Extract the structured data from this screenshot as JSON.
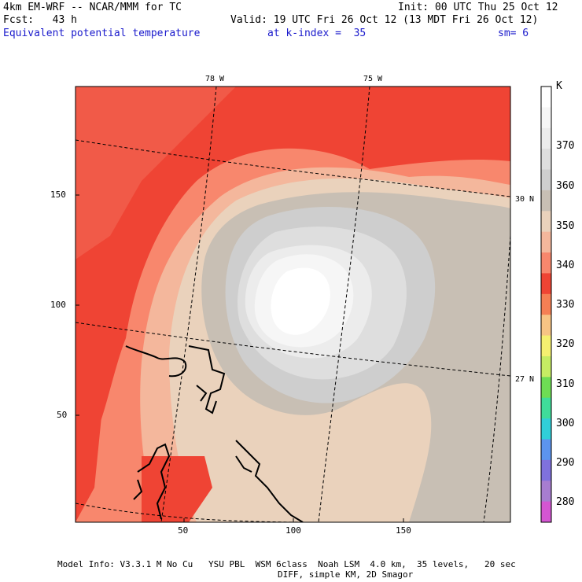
{
  "header": {
    "model": "4km EM-WRF -- NCAR/MMM for TC",
    "init": "Init: 00 UTC Thu 25 Oct 12",
    "fcst": "Fcst:   43 h",
    "valid": "Valid: 19 UTC Fri 26 Oct 12 (13 MDT Fri 26 Oct 12)",
    "field": "Equivalent potential temperature",
    "level": "at k-index =  35",
    "smooth": "sm= 6"
  },
  "map": {
    "lon_labels": [
      "78 W",
      "75 W"
    ],
    "lat_labels": [
      "30 N",
      "27 N"
    ],
    "y_ticks": [
      "150",
      "100",
      "50"
    ],
    "x_ticks": [
      "50",
      "100",
      "150"
    ]
  },
  "legend": {
    "unit": "K",
    "labels": [
      "370",
      "360",
      "350",
      "340",
      "330",
      "320",
      "310",
      "300",
      "290",
      "280"
    ],
    "colors": [
      "#ffffff",
      "#f6f6f6",
      "#ececec",
      "#dedede",
      "#cecece",
      "#c8bfb4",
      "#ead2bc",
      "#f4b79c",
      "#f8876d",
      "#ef4434",
      "#f57f54",
      "#f7c484",
      "#f5f070",
      "#c6ec63",
      "#6edc54",
      "#3fdc9a",
      "#30cfd8",
      "#5c94ee",
      "#7f71dc",
      "#a77dd0",
      "#d456d2"
    ]
  },
  "footer": {
    "line1": "Model Info: V3.3.1 M No Cu   YSU PBL  WSM 6class  Noah LSM  4.0 km,  35 levels,   20 sec",
    "line2": "DIFF, simple KM, 2D Smagor"
  }
}
